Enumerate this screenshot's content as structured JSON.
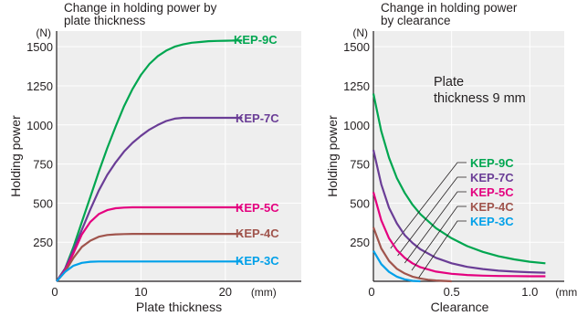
{
  "chart_data": [
    {
      "type": "line",
      "title": "Change in holding power by\nplate thickness",
      "ylabel": "Holding power",
      "xlabel": "Plate thickness",
      "y_unit": "(N)",
      "x_unit": "(mm)",
      "xlim": [
        0,
        29
      ],
      "ylim": [
        0,
        1600
      ],
      "x_ticks": [
        0,
        10,
        20
      ],
      "y_ticks": [
        250,
        500,
        750,
        1000,
        1250,
        1500
      ],
      "grid": true,
      "legend": "inline-right",
      "series": [
        {
          "name": "KEP-9C",
          "color": "#00a650",
          "x": [
            0,
            1,
            2,
            3,
            4,
            5,
            6,
            7,
            8,
            9,
            10,
            11,
            12,
            13,
            14,
            15,
            16,
            17,
            18,
            19,
            20,
            21,
            22
          ],
          "y": [
            0,
            80,
            220,
            380,
            540,
            700,
            850,
            990,
            1120,
            1230,
            1320,
            1390,
            1440,
            1475,
            1500,
            1515,
            1525,
            1530,
            1535,
            1537,
            1538,
            1539,
            1540
          ]
        },
        {
          "name": "KEP-7C",
          "color": "#6a3d96",
          "x": [
            0,
            1,
            2,
            3,
            4,
            5,
            6,
            7,
            8,
            9,
            10,
            11,
            12,
            13,
            14,
            15,
            16,
            17,
            18,
            19,
            20,
            21,
            22
          ],
          "y": [
            0,
            80,
            200,
            330,
            460,
            580,
            680,
            760,
            830,
            885,
            930,
            970,
            1000,
            1025,
            1040,
            1045,
            1045,
            1045,
            1045,
            1045,
            1045,
            1045,
            1045
          ]
        },
        {
          "name": "KEP-5C",
          "color": "#e4007f",
          "x": [
            0,
            1,
            2,
            3,
            4,
            5,
            6,
            7,
            8,
            9,
            10,
            22
          ],
          "y": [
            0,
            70,
            180,
            300,
            380,
            430,
            455,
            467,
            471,
            473,
            473,
            473
          ]
        },
        {
          "name": "KEP-4C",
          "color": "#a0544c",
          "x": [
            0,
            1,
            2,
            3,
            4,
            5,
            6,
            7,
            8,
            9,
            10,
            22
          ],
          "y": [
            0,
            60,
            150,
            220,
            260,
            285,
            296,
            300,
            302,
            303,
            303,
            303
          ]
        },
        {
          "name": "KEP-3C",
          "color": "#00a0e9",
          "x": [
            0,
            1,
            2,
            3,
            4,
            5,
            6,
            22
          ],
          "y": [
            0,
            60,
            100,
            118,
            125,
            127,
            127,
            127
          ]
        }
      ]
    },
    {
      "type": "line",
      "title": "Change in holding power\nby clearance",
      "ylabel": "Holding power",
      "xlabel": "Clearance",
      "y_unit": "(N)",
      "x_unit": "(mm)",
      "xlim": [
        0,
        1.22
      ],
      "ylim": [
        0,
        1600
      ],
      "x_ticks": [
        0.5,
        1.0
      ],
      "x_tick_labels": [
        "0.5",
        "1.0"
      ],
      "y_ticks": [
        250,
        500,
        750,
        1000,
        1250,
        1500
      ],
      "grid": true,
      "legend": "center with leader lines",
      "annotation": "Plate\nthickness 9 mm",
      "series": [
        {
          "name": "KEP-9C",
          "color": "#00a650",
          "x": [
            0,
            0.05,
            0.1,
            0.15,
            0.2,
            0.25,
            0.3,
            0.4,
            0.5,
            0.6,
            0.7,
            0.8,
            0.9,
            1.0,
            1.1
          ],
          "y": [
            1200,
            960,
            790,
            660,
            565,
            490,
            430,
            340,
            275,
            225,
            188,
            160,
            140,
            125,
            115
          ]
        },
        {
          "name": "KEP-7C",
          "color": "#6a3d96",
          "x": [
            0,
            0.05,
            0.1,
            0.15,
            0.2,
            0.25,
            0.3,
            0.4,
            0.5,
            0.6,
            0.7,
            0.8,
            0.9,
            1.0,
            1.1
          ],
          "y": [
            840,
            620,
            470,
            370,
            295,
            245,
            205,
            150,
            115,
            92,
            78,
            68,
            62,
            58,
            55
          ]
        },
        {
          "name": "KEP-5C",
          "color": "#e4007f",
          "x": [
            0,
            0.05,
            0.1,
            0.15,
            0.2,
            0.25,
            0.3,
            0.4,
            0.5,
            0.6,
            0.7,
            0.8,
            0.9,
            1.0,
            1.1
          ],
          "y": [
            570,
            390,
            275,
            200,
            150,
            115,
            90,
            62,
            48,
            40,
            36,
            34,
            33,
            32,
            32
          ]
        },
        {
          "name": "KEP-4C",
          "color": "#a0544c",
          "x": [
            0,
            0.05,
            0.1,
            0.15,
            0.2,
            0.25,
            0.3,
            0.35,
            0.4,
            0.5
          ],
          "y": [
            345,
            210,
            130,
            80,
            50,
            30,
            18,
            10,
            5,
            0
          ]
        },
        {
          "name": "KEP-3C",
          "color": "#00a0e9",
          "x": [
            0,
            0.05,
            0.1,
            0.15,
            0.2,
            0.25,
            0.3
          ],
          "y": [
            195,
            110,
            60,
            30,
            12,
            3,
            0
          ]
        }
      ]
    }
  ]
}
